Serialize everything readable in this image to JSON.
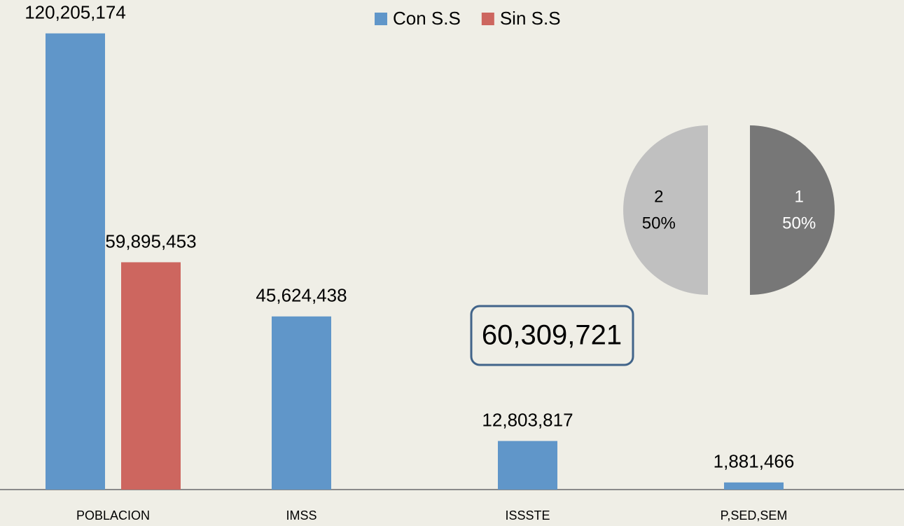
{
  "chart_data": [
    {
      "type": "bar",
      "categories": [
        "POBLACION",
        "IMSS",
        "ISSSTE",
        "P,SED,SEM"
      ],
      "series": [
        {
          "name": "Con S.S",
          "color": "#6096c9",
          "values": [
            120205174,
            45624438,
            12803817,
            1881466
          ],
          "value_labels": [
            "120,205,174",
            "45,624,438",
            "12,803,817",
            "1,881,466"
          ]
        },
        {
          "name": "Sin S.S",
          "color": "#cd665f",
          "values": [
            59895453,
            null,
            null,
            null
          ],
          "value_labels": [
            "59,895,453",
            null,
            null,
            null
          ]
        }
      ],
      "ylim": [
        0,
        129000000
      ],
      "legend": "top",
      "annotations": [
        "60,309,721"
      ]
    },
    {
      "type": "pie",
      "categories": [
        "1",
        "2"
      ],
      "values": [
        50,
        50
      ],
      "value_labels": [
        "50%",
        "50%"
      ],
      "colors": [
        "#777777",
        "#c0c0c0"
      ],
      "exploded": true
    }
  ]
}
